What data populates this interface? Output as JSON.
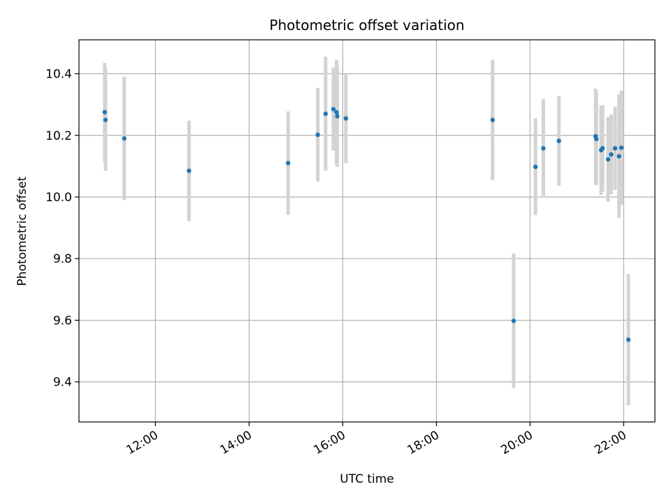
{
  "chart_data": {
    "type": "scatter",
    "title": "Photometric offset variation",
    "xlabel": "UTC time",
    "ylabel": "Photometric offset",
    "x_ticks": [
      "12:00",
      "14:00",
      "16:00",
      "18:00",
      "20:00",
      "22:00"
    ],
    "y_ticks": [
      "9.4",
      "9.6",
      "9.8",
      "10.0",
      "10.2",
      "10.4"
    ],
    "xlim": [
      "10:22",
      "22:40"
    ],
    "ylim": [
      9.27,
      10.51
    ],
    "grid": true,
    "colors": {
      "point": "#1f77b4",
      "errorbar": "#d3d3d3",
      "grid": "#b0b0b0"
    },
    "series": [
      {
        "points": [
          {
            "x": "10:55",
            "y": 10.275,
            "err": 0.16
          },
          {
            "x": "10:56",
            "y": 10.25,
            "err": 0.165
          },
          {
            "x": "11:20",
            "y": 10.19,
            "err": 0.2
          },
          {
            "x": "12:43",
            "y": 10.085,
            "err": 0.163
          },
          {
            "x": "14:50",
            "y": 10.11,
            "err": 0.168
          },
          {
            "x": "15:28",
            "y": 10.202,
            "err": 0.152
          },
          {
            "x": "15:38",
            "y": 10.27,
            "err": 0.185
          },
          {
            "x": "15:48",
            "y": 10.285,
            "err": 0.135
          },
          {
            "x": "15:52",
            "y": 10.275,
            "err": 0.17
          },
          {
            "x": "15:53",
            "y": 10.262,
            "err": 0.165
          },
          {
            "x": "16:04",
            "y": 10.255,
            "err": 0.145
          },
          {
            "x": "19:12",
            "y": 10.25,
            "err": 0.195
          },
          {
            "x": "19:39",
            "y": 9.598,
            "err": 0.218
          },
          {
            "x": "20:07",
            "y": 10.098,
            "err": 0.157
          },
          {
            "x": "20:17",
            "y": 10.158,
            "err": 0.16
          },
          {
            "x": "20:37",
            "y": 10.182,
            "err": 0.145
          },
          {
            "x": "21:24",
            "y": 10.197,
            "err": 0.155
          },
          {
            "x": "21:25",
            "y": 10.188,
            "err": 0.15
          },
          {
            "x": "21:31",
            "y": 10.152,
            "err": 0.145
          },
          {
            "x": "21:33",
            "y": 10.158,
            "err": 0.14
          },
          {
            "x": "21:40",
            "y": 10.122,
            "err": 0.138
          },
          {
            "x": "21:44",
            "y": 10.138,
            "err": 0.13
          },
          {
            "x": "21:49",
            "y": 10.158,
            "err": 0.135
          },
          {
            "x": "21:54",
            "y": 10.132,
            "err": 0.2
          },
          {
            "x": "21:57",
            "y": 10.16,
            "err": 0.185
          },
          {
            "x": "22:06",
            "y": 9.537,
            "err": 0.213
          }
        ]
      }
    ]
  }
}
